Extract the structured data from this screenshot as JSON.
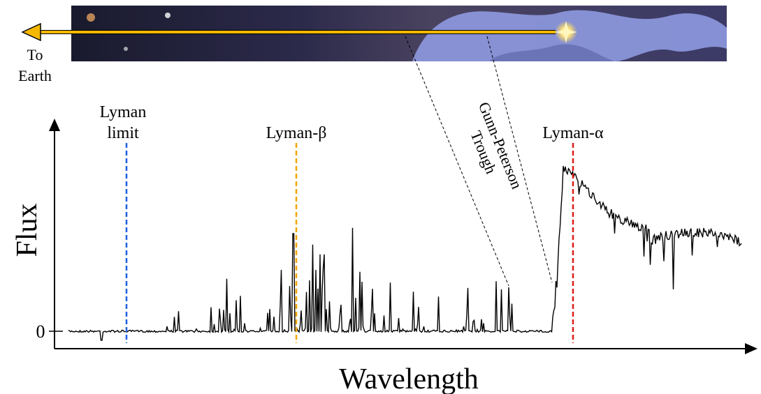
{
  "banner": {
    "caption_lines": [
      "To",
      "Earth"
    ]
  },
  "axes": {
    "y_label": "Flux",
    "x_label": "Wavelength",
    "zero_label": "0"
  },
  "lines": [
    {
      "label_lines": [
        "Lyman",
        "limit"
      ]
    },
    {
      "label_lines": [
        "Lyman-β"
      ]
    },
    {
      "label_lines": [
        "Lyman-α"
      ]
    }
  ],
  "trough": {
    "label_lines": [
      "Gunn-Peterson",
      "Trough"
    ]
  }
}
